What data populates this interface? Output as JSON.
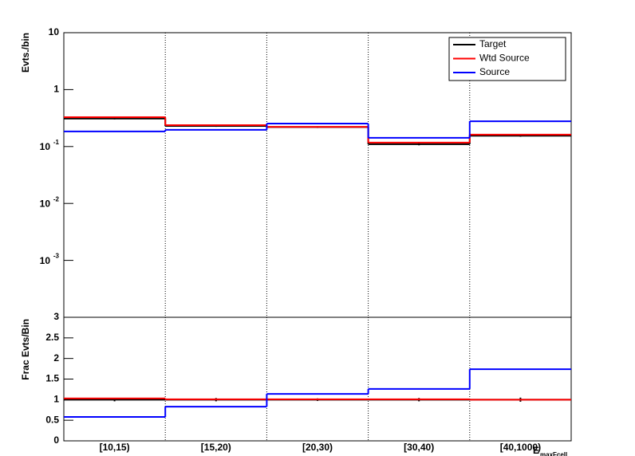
{
  "chart_data": {
    "type": "step",
    "categories": [
      "[10,15)",
      "[15,20)",
      "[20,30)",
      "[30,40)",
      "[40,1000)"
    ],
    "xlabel": {
      "text": "E",
      "subscript": "maxFcell"
    },
    "legend": "top-right",
    "panels": [
      {
        "ylabel": "Evts./bin",
        "log_scale": true,
        "ylim": [
          0.0001,
          10
        ],
        "yticks": [
          10,
          1,
          {
            "value": 0.1,
            "label": "10",
            "exponent": "-1"
          },
          {
            "value": 0.01,
            "label": "10",
            "exponent": "-2"
          },
          {
            "value": 0.001,
            "label": "10",
            "exponent": "-3"
          }
        ],
        "series": [
          {
            "name": "Target",
            "color": "#000000",
            "values": [
              0.31,
              0.23,
              0.22,
              0.11,
              0.155
            ],
            "errors": [
              0.01,
              0.008,
              0.007,
              0.005,
              0.006
            ]
          },
          {
            "name": "Wtd Source",
            "color": "#ff0000",
            "values": [
              0.327,
              0.237,
              0.222,
              0.117,
              0.162
            ]
          },
          {
            "name": "Source",
            "color": "#0000ff",
            "values": [
              0.184,
              0.196,
              0.253,
              0.142,
              0.278
            ]
          }
        ]
      },
      {
        "ylabel": "Frac Evts/Bin",
        "log_scale": false,
        "ylim": [
          0,
          3
        ],
        "yticks": [
          0,
          0.5,
          1,
          1.5,
          2,
          2.5,
          3
        ],
        "series": [
          {
            "color": "#000000",
            "values": [
              1,
              1,
              1,
              1,
              1
            ],
            "errors": [
              0.04,
              0.04,
              0.03,
              0.04,
              0.05
            ]
          },
          {
            "color": "#ff0000",
            "values": [
              1.03,
              1.01,
              1.01,
              1.01,
              1.0
            ]
          },
          {
            "color": "#0000ff",
            "values": [
              0.58,
              0.83,
              1.14,
              1.26,
              1.74
            ]
          }
        ]
      }
    ]
  }
}
